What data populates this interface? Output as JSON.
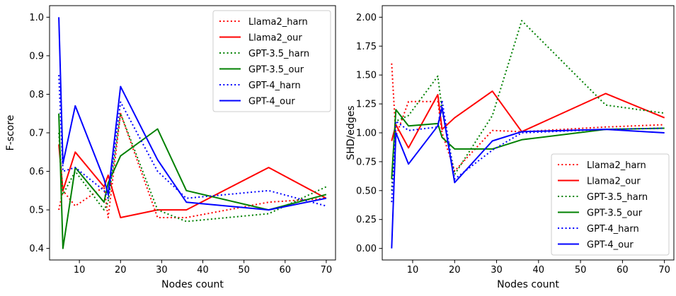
{
  "chart_data": [
    {
      "type": "line",
      "xlabel": "Nodes count",
      "ylabel": "F-score",
      "xlim": [
        2.75,
        72.25
      ],
      "ylim": [
        0.37,
        1.03
      ],
      "xticks": [
        "10",
        "20",
        "30",
        "40",
        "50",
        "60",
        "70"
      ],
      "yticks": [
        "0.4",
        "0.5",
        "0.6",
        "0.7",
        "0.8",
        "0.9",
        "1.0"
      ],
      "grid": false,
      "legend_position": "upper right",
      "series": [
        {
          "name": "Llama2_harn",
          "color": "#ff0000",
          "style": "dotted",
          "x": [
            5,
            6,
            9,
            16,
            17,
            20,
            29,
            36,
            56,
            70
          ],
          "y": [
            0.5,
            0.55,
            0.51,
            0.56,
            0.48,
            0.75,
            0.48,
            0.48,
            0.52,
            0.53
          ]
        },
        {
          "name": "Llama2_our",
          "color": "#ff0000",
          "style": "solid",
          "x": [
            5,
            6,
            9,
            16,
            17,
            20,
            29,
            36,
            56,
            70
          ],
          "y": [
            0.67,
            0.55,
            0.65,
            0.56,
            0.59,
            0.48,
            0.5,
            0.5,
            0.61,
            0.53
          ]
        },
        {
          "name": "GPT-3.5_harn",
          "color": "#008000",
          "style": "dotted",
          "x": [
            5,
            6,
            9,
            16,
            17,
            20,
            29,
            36,
            56,
            70
          ],
          "y": [
            0.7,
            0.54,
            0.6,
            0.5,
            0.52,
            0.75,
            0.5,
            0.47,
            0.49,
            0.56
          ]
        },
        {
          "name": "GPT-3.5_our",
          "color": "#008000",
          "style": "solid",
          "x": [
            5,
            6,
            9,
            16,
            17,
            20,
            29,
            36,
            56,
            70
          ],
          "y": [
            0.75,
            0.4,
            0.61,
            0.52,
            0.57,
            0.64,
            0.71,
            0.55,
            0.5,
            0.54
          ]
        },
        {
          "name": "GPT-4_harn",
          "color": "#0000ff",
          "style": "dotted",
          "x": [
            5,
            6,
            9,
            16,
            17,
            20,
            29,
            36,
            56,
            70
          ],
          "y": [
            0.85,
            0.6,
            0.61,
            0.55,
            0.53,
            0.78,
            0.6,
            0.53,
            0.55,
            0.51
          ]
        },
        {
          "name": "GPT-4_our",
          "color": "#0000ff",
          "style": "solid",
          "x": [
            5,
            6,
            9,
            16,
            17,
            20,
            29,
            36,
            56,
            70
          ],
          "y": [
            1.0,
            0.62,
            0.77,
            0.58,
            0.54,
            0.82,
            0.63,
            0.52,
            0.5,
            0.53
          ]
        }
      ]
    },
    {
      "type": "line",
      "xlabel": "Nodes count",
      "ylabel": "SHD/edges",
      "xlim": [
        2.75,
        72.25
      ],
      "ylim": [
        -0.1,
        2.1
      ],
      "xticks": [
        "10",
        "20",
        "30",
        "40",
        "50",
        "60",
        "70"
      ],
      "yticks": [
        "0.00",
        "0.25",
        "0.50",
        "0.75",
        "1.00",
        "1.25",
        "1.50",
        "1.75",
        "2.00"
      ],
      "grid": false,
      "legend_position": "lower right",
      "series": [
        {
          "name": "Llama2_harn",
          "color": "#ff0000",
          "style": "dotted",
          "x": [
            5,
            6,
            9,
            16,
            17,
            20,
            29,
            36,
            56,
            70
          ],
          "y": [
            1.6,
            0.97,
            1.27,
            1.27,
            1.0,
            0.67,
            1.02,
            1.01,
            1.05,
            1.07
          ]
        },
        {
          "name": "Llama2_our",
          "color": "#ff0000",
          "style": "solid",
          "x": [
            5,
            6,
            9,
            16,
            17,
            20,
            29,
            36,
            56,
            70
          ],
          "y": [
            0.93,
            1.07,
            0.87,
            1.33,
            1.03,
            1.13,
            1.36,
            1.01,
            1.34,
            1.13
          ]
        },
        {
          "name": "GPT-3.5_harn",
          "color": "#008000",
          "style": "dotted",
          "x": [
            5,
            6,
            9,
            16,
            17,
            20,
            29,
            36,
            56,
            70
          ],
          "y": [
            0.5,
            1.1,
            1.15,
            1.49,
            1.2,
            0.64,
            1.15,
            1.97,
            1.24,
            1.17
          ]
        },
        {
          "name": "GPT-3.5_our",
          "color": "#008000",
          "style": "solid",
          "x": [
            5,
            6,
            9,
            16,
            17,
            20,
            29,
            36,
            56,
            70
          ],
          "y": [
            0.6,
            1.2,
            1.06,
            1.08,
            0.96,
            0.86,
            0.86,
            0.94,
            1.03,
            1.04
          ]
        },
        {
          "name": "GPT-4_harn",
          "color": "#0000ff",
          "style": "dotted",
          "x": [
            5,
            6,
            9,
            16,
            17,
            20,
            29,
            36,
            56,
            70
          ],
          "y": [
            0.4,
            1.1,
            1.02,
            1.05,
            1.28,
            0.6,
            0.85,
            1.0,
            1.03,
            1.04
          ]
        },
        {
          "name": "GPT-4_our",
          "color": "#0000ff",
          "style": "solid",
          "x": [
            5,
            6,
            9,
            16,
            17,
            20,
            29,
            36,
            56,
            70
          ],
          "y": [
            0.0,
            1.0,
            0.73,
            1.06,
            1.22,
            0.57,
            0.93,
            1.01,
            1.03,
            1.0
          ]
        }
      ]
    }
  ]
}
